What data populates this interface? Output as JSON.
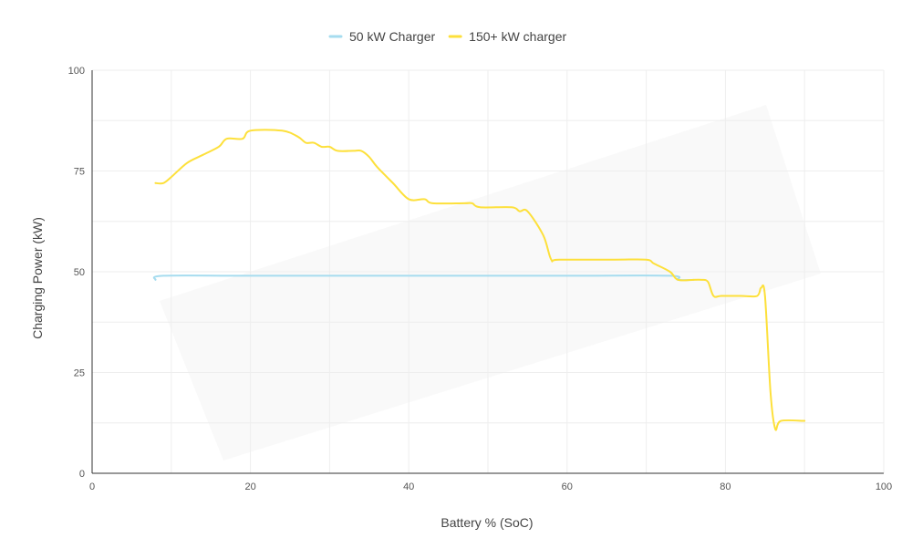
{
  "chart_data": {
    "type": "line",
    "xlabel": "Battery % (SoC)",
    "ylabel": "Charging Power (kW)",
    "xlim": [
      0,
      100
    ],
    "ylim": [
      0,
      100
    ],
    "x_ticks": [
      "0",
      "20",
      "40",
      "60",
      "80",
      "100"
    ],
    "y_ticks": [
      "0",
      "25",
      "50",
      "75",
      "100"
    ],
    "grid": true,
    "legend_position": "top-center",
    "series": [
      {
        "name": "50 kW Charger",
        "color": "#a6dcef",
        "points": [
          [
            8,
            48
          ],
          [
            9,
            49
          ],
          [
            20,
            49
          ],
          [
            40,
            49
          ],
          [
            60,
            49
          ],
          [
            73,
            49
          ],
          [
            74,
            48
          ],
          [
            76,
            48
          ]
        ]
      },
      {
        "name": "150+ kW charger",
        "color": "#fde03b",
        "points": [
          [
            8,
            72
          ],
          [
            9,
            72
          ],
          [
            10,
            73.5
          ],
          [
            12,
            77
          ],
          [
            14,
            79
          ],
          [
            16,
            81
          ],
          [
            17,
            83
          ],
          [
            19,
            83
          ],
          [
            20,
            85
          ],
          [
            24,
            85
          ],
          [
            26,
            83.5
          ],
          [
            27,
            82
          ],
          [
            28,
            82
          ],
          [
            29,
            81
          ],
          [
            30,
            81
          ],
          [
            31,
            80
          ],
          [
            33,
            80
          ],
          [
            34,
            80
          ],
          [
            35,
            78.5
          ],
          [
            36,
            76
          ],
          [
            38,
            72
          ],
          [
            40,
            68
          ],
          [
            42,
            68
          ],
          [
            43,
            67
          ],
          [
            47,
            67
          ],
          [
            48,
            67
          ],
          [
            49,
            66
          ],
          [
            53,
            66
          ],
          [
            54,
            65
          ],
          [
            55,
            65
          ],
          [
            57,
            59
          ],
          [
            58,
            53
          ],
          [
            59,
            53
          ],
          [
            66,
            53
          ],
          [
            70,
            53
          ],
          [
            71,
            52
          ],
          [
            73,
            50
          ],
          [
            74,
            48
          ],
          [
            76,
            48
          ],
          [
            77,
            48
          ],
          [
            77.8,
            47.5
          ],
          [
            78.5,
            44
          ],
          [
            79.5,
            44
          ],
          [
            82,
            44
          ],
          [
            84,
            44
          ],
          [
            84.5,
            46
          ],
          [
            85,
            44
          ],
          [
            85.7,
            20
          ],
          [
            86.3,
            11
          ],
          [
            87,
            13
          ],
          [
            90,
            13
          ]
        ]
      }
    ]
  }
}
